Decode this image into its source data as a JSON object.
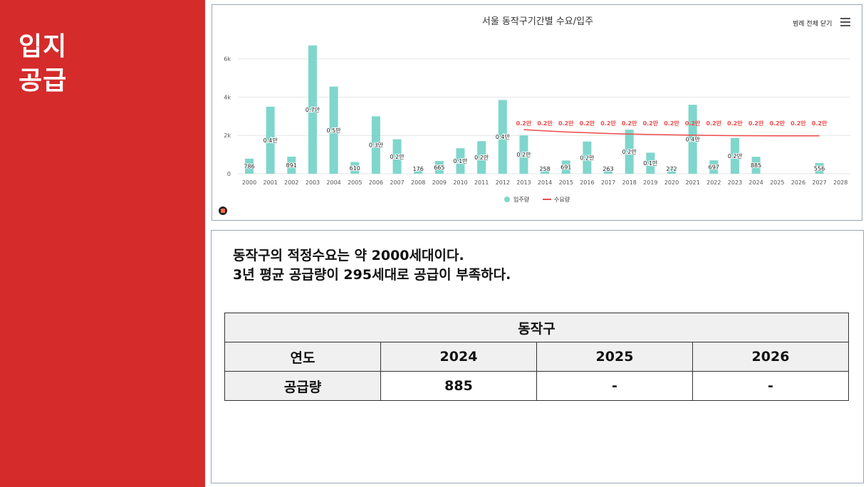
{
  "sidebar": {
    "line1": "입지",
    "line2": "공급"
  },
  "chart_header": {
    "legend_button": "범례 전체 닫기",
    "menu_icon": "hamburger-menu-icon"
  },
  "chart_data": {
    "type": "bar",
    "title": "서울 동작구기간별 수요/입주",
    "categories": [
      "2000",
      "2001",
      "2002",
      "2003",
      "2004",
      "2005",
      "2006",
      "2007",
      "2008",
      "2009",
      "2010",
      "2011",
      "2012",
      "2013",
      "2014",
      "2015",
      "2016",
      "2017",
      "2018",
      "2019",
      "2020",
      "2021",
      "2022",
      "2023",
      "2024",
      "2025",
      "2026",
      "2027",
      "2028"
    ],
    "yticks": [
      "0",
      "2k",
      "4k",
      "6k"
    ],
    "ylim": [
      0,
      6000
    ],
    "series": [
      {
        "name": "입주량",
        "type": "bar",
        "color": "#7fd6cc",
        "values": [
          786,
          3500,
          891,
          6700,
          4550,
          610,
          3000,
          1800,
          176,
          665,
          1330,
          1700,
          3850,
          2000,
          258,
          691,
          1680,
          263,
          2300,
          1100,
          272,
          3600,
          697,
          1870,
          885,
          null,
          null,
          556,
          null
        ],
        "labels": [
          "786",
          "0.4만",
          "891",
          "0.7만",
          "0.5만",
          "610",
          "0.3만",
          "0.2만",
          "176",
          "665",
          "0.1만",
          "0.2만",
          "0.4만",
          "0.2만",
          "258",
          "691",
          "0.2만",
          "263",
          "0.2만",
          "0.1만",
          "272",
          "0.4만",
          "697",
          "0.2만",
          "885",
          "",
          "",
          "556",
          ""
        ]
      },
      {
        "name": "수요량",
        "type": "line",
        "color": "#ef4a4a",
        "values": [
          null,
          null,
          null,
          null,
          null,
          null,
          null,
          null,
          null,
          null,
          null,
          null,
          null,
          2300,
          2240,
          2180,
          2140,
          2100,
          2070,
          2050,
          2030,
          2010,
          2000,
          1990,
          1985,
          1980,
          1980,
          1980,
          null
        ],
        "labels": [
          "",
          "",
          "",
          "",
          "",
          "",
          "",
          "",
          "",
          "",
          "",
          "",
          "",
          "0.2만",
          "0.2만",
          "0.2만",
          "0.2만",
          "0.2만",
          "0.2만",
          "0.2만",
          "0.2만",
          "0.2만",
          "0.2만",
          "0.2만",
          "0.2만",
          "0.2만",
          "0.2만",
          "0.2만",
          ""
        ]
      }
    ]
  },
  "statement": {
    "line1": "동작구의 적정수요는 약 2000세대이다.",
    "line2": "3년 평균 공급량이 295세대로 공급이 부족하다."
  },
  "table": {
    "title": "동작구",
    "row_year_label": "연도",
    "years": [
      "2024",
      "2025",
      "2026"
    ],
    "row_supply_label": "공급량",
    "supply": [
      "885",
      "-",
      "-"
    ]
  }
}
